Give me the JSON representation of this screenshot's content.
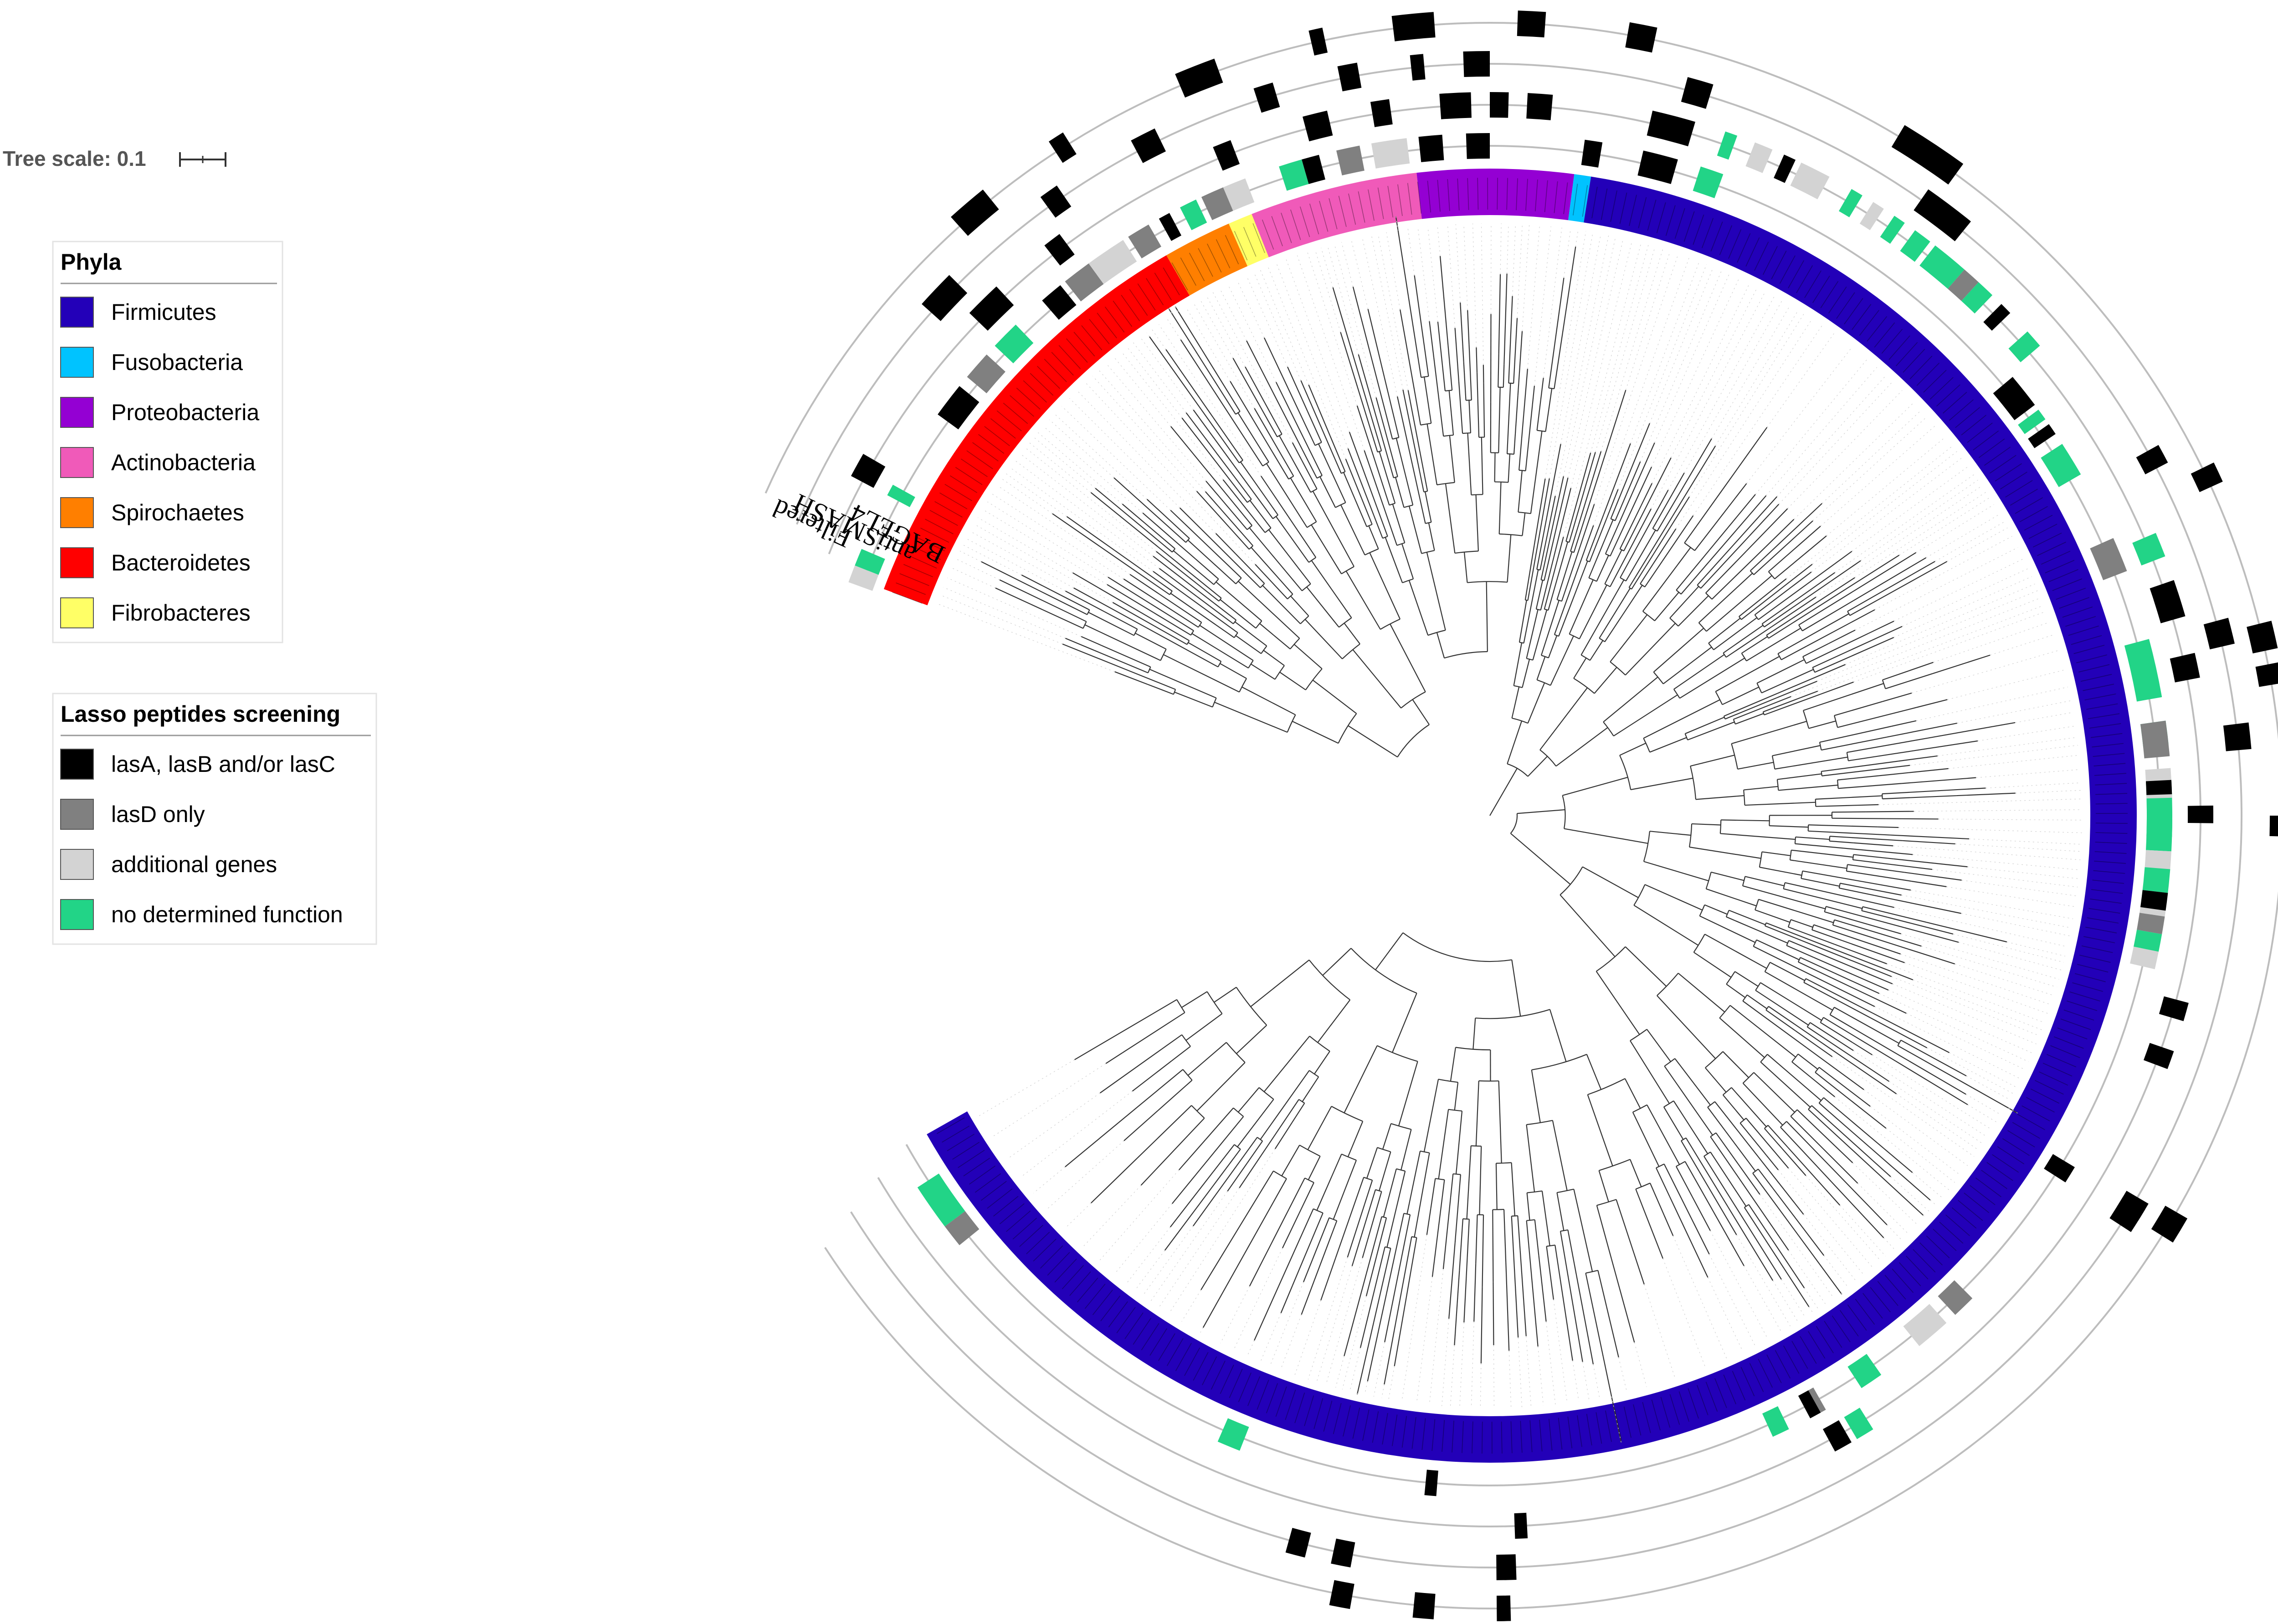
{
  "scale": {
    "label": "Tree scale: 0.1"
  },
  "ring_labels": [
    "Filtered",
    "antiSMASH",
    "BAGEL4"
  ],
  "legend_phyla": {
    "title": "Phyla",
    "items": [
      {
        "label": "Firmicutes",
        "color": "#2300b8"
      },
      {
        "label": "Fusobacteria",
        "color": "#00c3ff"
      },
      {
        "label": "Proteobacteria",
        "color": "#9400d3"
      },
      {
        "label": "Actinobacteria",
        "color": "#f05ab9"
      },
      {
        "label": "Spirochaetes",
        "color": "#ff7f00"
      },
      {
        "label": "Bacteroidetes",
        "color": "#ff0000"
      },
      {
        "label": "Fibrobacteres",
        "color": "#ffff66"
      }
    ]
  },
  "legend_lasso": {
    "title": "Lasso peptides screening",
    "items": [
      {
        "label": "lasA, lasB and/or lasC",
        "color": "#000000"
      },
      {
        "label": "lasD only",
        "color": "#808080"
      },
      {
        "label": "additional genes",
        "color": "#d3d3d3"
      },
      {
        "label": "no determined function",
        "color": "#22d487"
      }
    ]
  }
}
